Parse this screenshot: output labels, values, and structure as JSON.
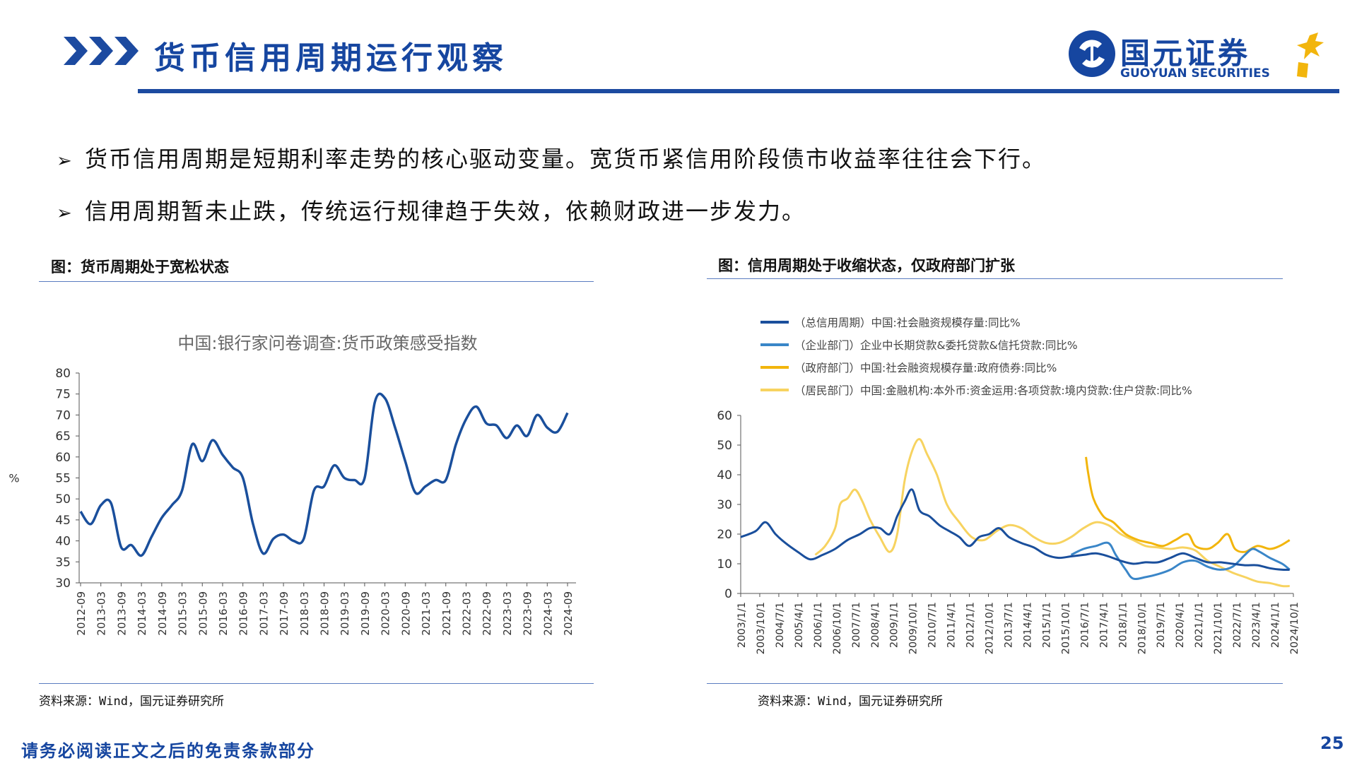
{
  "header": {
    "title": "货币信用周期运行观察",
    "logo_cn": "国元证券",
    "logo_en": "GUOYUAN SECURITIES"
  },
  "bullets": [
    "货币信用周期是短期利率走势的核心驱动变量。宽货币紧信用阶段债市收益率往往会下行。",
    "信用周期暂未止跌，传统运行规律趋于失效，依赖财政进一步发力。"
  ],
  "bullet_mark": "➢",
  "left_panel": {
    "figure_title": "图：货币周期处于宽松状态",
    "source": "资料来源：Wind，国元证券研究所"
  },
  "right_panel": {
    "figure_title": "图：信用周期处于收缩状态，仅政府部门扩张",
    "source": "资料来源：Wind，国元证券研究所"
  },
  "footer": {
    "disclaimer": "请务必阅读正文之后的免责条款部分",
    "page": "25"
  },
  "colors": {
    "brand_blue": "#1646a0",
    "series_dark": "#1a4f9c",
    "series_mid": "#3a86c8",
    "series_gold": "#f2b50c",
    "series_light_gold": "#f7d360"
  },
  "chart_data": [
    {
      "type": "line",
      "title": "中国:银行家问卷调查:货币政策感受指数",
      "ylabel": "%",
      "ylim": [
        30,
        80
      ],
      "yticks": [
        30,
        35,
        40,
        45,
        50,
        55,
        60,
        65,
        70,
        75,
        80
      ],
      "xticks": [
        "2012-09",
        "2013-03",
        "2013-09",
        "2014-03",
        "2014-09",
        "2015-03",
        "2015-09",
        "2016-03",
        "2016-09",
        "2017-03",
        "2017-09",
        "2018-03",
        "2018-09",
        "2019-03",
        "2019-09",
        "2020-03",
        "2020-09",
        "2021-03",
        "2021-09",
        "2022-03",
        "2022-09",
        "2023-03",
        "2023-09",
        "2024-03",
        "2024-09"
      ],
      "series": [
        {
          "color": "#1a4f9c",
          "values": [
            47,
            44,
            48.5,
            49,
            38.5,
            39,
            36.5,
            41,
            45.5,
            48.5,
            52,
            63,
            59,
            64,
            60.5,
            57.5,
            55,
            44,
            37,
            40.5,
            41.5,
            40,
            40.5,
            52,
            53,
            58,
            55,
            54.5,
            55,
            73,
            74,
            67,
            59,
            51.5,
            53,
            54.5,
            54.5,
            63,
            69,
            72,
            68,
            67.5,
            64.5,
            67.5,
            65,
            70,
            67,
            66,
            70.5
          ]
        }
      ]
    },
    {
      "type": "line",
      "ylim": [
        0,
        60
      ],
      "yticks": [
        0,
        10,
        20,
        30,
        40,
        50,
        60
      ],
      "xticks": [
        "2003/1/1",
        "2003/10/1",
        "2004/7/1",
        "2005/4/1",
        "2006/1/1",
        "2006/10/1",
        "2007/7/1",
        "2008/4/1",
        "2009/1/1",
        "2009/10/1",
        "2010/7/1",
        "2011/4/1",
        "2012/1/1",
        "2012/10/1",
        "2013/7/1",
        "2014/4/1",
        "2015/1/1",
        "2015/10/1",
        "2016/7/1",
        "2017/4/1",
        "2018/1/1",
        "2018/10/1",
        "2019/7/1",
        "2020/4/1",
        "2021/1/1",
        "2021/10/1",
        "2022/7/1",
        "2023/4/1",
        "2024/1/1",
        "2024/10/1"
      ],
      "x_range": [
        2003.0,
        2025.25
      ],
      "legend_position": "top-left",
      "series": [
        {
          "name": "（总信用周期）中国:社会融资规模存量:同比%",
          "color": "#1a4f9c",
          "points": [
            [
              2003.0,
              19
            ],
            [
              2003.6,
              21
            ],
            [
              2004.0,
              24
            ],
            [
              2004.4,
              20
            ],
            [
              2004.8,
              17
            ],
            [
              2005.3,
              14
            ],
            [
              2005.8,
              11.5
            ],
            [
              2006.3,
              13
            ],
            [
              2006.8,
              15
            ],
            [
              2007.3,
              18
            ],
            [
              2007.8,
              20
            ],
            [
              2008.2,
              22
            ],
            [
              2008.6,
              22
            ],
            [
              2009.0,
              20
            ],
            [
              2009.3,
              26
            ],
            [
              2009.6,
              31
            ],
            [
              2009.9,
              35
            ],
            [
              2010.2,
              28
            ],
            [
              2010.6,
              26
            ],
            [
              2011.0,
              23
            ],
            [
              2011.4,
              21
            ],
            [
              2011.8,
              19
            ],
            [
              2012.2,
              16
            ],
            [
              2012.6,
              19
            ],
            [
              2013.0,
              20
            ],
            [
              2013.4,
              22
            ],
            [
              2013.8,
              19
            ],
            [
              2014.3,
              17
            ],
            [
              2014.8,
              15.5
            ],
            [
              2015.3,
              13
            ],
            [
              2015.8,
              12
            ],
            [
              2016.3,
              12.5
            ],
            [
              2016.8,
              13
            ],
            [
              2017.3,
              13.5
            ],
            [
              2017.8,
              12.5
            ],
            [
              2018.3,
              11
            ],
            [
              2018.8,
              10
            ],
            [
              2019.3,
              10.5
            ],
            [
              2019.8,
              10.5
            ],
            [
              2020.3,
              12
            ],
            [
              2020.8,
              13.5
            ],
            [
              2021.3,
              12
            ],
            [
              2021.8,
              10.5
            ],
            [
              2022.3,
              10.5
            ],
            [
              2022.8,
              10
            ],
            [
              2023.3,
              9.5
            ],
            [
              2023.8,
              9.5
            ],
            [
              2024.3,
              8.5
            ],
            [
              2024.8,
              8
            ],
            [
              2025.1,
              8
            ]
          ]
        },
        {
          "name": "（企业部门）企业中长期贷款&委托贷款&信托贷款:同比%",
          "color": "#3a86c8",
          "points": [
            [
              2016.3,
              13
            ],
            [
              2016.8,
              15
            ],
            [
              2017.3,
              16
            ],
            [
              2017.8,
              17
            ],
            [
              2018.1,
              13
            ],
            [
              2018.5,
              8
            ],
            [
              2018.8,
              5
            ],
            [
              2019.3,
              5.5
            ],
            [
              2019.8,
              6.5
            ],
            [
              2020.3,
              8
            ],
            [
              2020.8,
              10.5
            ],
            [
              2021.3,
              11
            ],
            [
              2021.8,
              9
            ],
            [
              2022.3,
              8
            ],
            [
              2022.8,
              9
            ],
            [
              2023.3,
              13
            ],
            [
              2023.6,
              15
            ],
            [
              2023.9,
              14
            ],
            [
              2024.3,
              12
            ],
            [
              2024.8,
              10
            ],
            [
              2025.1,
              8
            ]
          ]
        },
        {
          "name": "（政府部门）中国:社会融资规模存量:政府债券:同比%",
          "color": "#f2b50c",
          "points": [
            [
              2016.9,
              46
            ],
            [
              2017.0,
              40
            ],
            [
              2017.2,
              32
            ],
            [
              2017.6,
              26
            ],
            [
              2018.0,
              24
            ],
            [
              2018.5,
              20
            ],
            [
              2019.0,
              18
            ],
            [
              2019.5,
              17
            ],
            [
              2020.0,
              16
            ],
            [
              2020.5,
              18
            ],
            [
              2021.0,
              20
            ],
            [
              2021.3,
              16
            ],
            [
              2021.8,
              15
            ],
            [
              2022.2,
              17
            ],
            [
              2022.6,
              20
            ],
            [
              2022.9,
              15
            ],
            [
              2023.3,
              14
            ],
            [
              2023.8,
              16
            ],
            [
              2024.3,
              15
            ],
            [
              2024.7,
              16
            ],
            [
              2025.1,
              18
            ]
          ]
        },
        {
          "name": "（居民部门）中国:金融机构:本外币:资金运用:各项贷款:境内贷款:住户贷款:同比%",
          "color": "#f7d360",
          "points": [
            [
              2006.0,
              13
            ],
            [
              2006.4,
              16
            ],
            [
              2006.8,
              22
            ],
            [
              2007.0,
              30
            ],
            [
              2007.3,
              32
            ],
            [
              2007.6,
              35
            ],
            [
              2007.9,
              31
            ],
            [
              2008.2,
              25
            ],
            [
              2008.6,
              19
            ],
            [
              2009.0,
              14
            ],
            [
              2009.3,
              20
            ],
            [
              2009.6,
              38
            ],
            [
              2009.9,
              48
            ],
            [
              2010.2,
              52
            ],
            [
              2010.5,
              47
            ],
            [
              2010.9,
              40
            ],
            [
              2011.3,
              30
            ],
            [
              2011.8,
              24
            ],
            [
              2012.3,
              19
            ],
            [
              2012.8,
              18
            ],
            [
              2013.3,
              21
            ],
            [
              2013.8,
              23
            ],
            [
              2014.3,
              22
            ],
            [
              2014.8,
              19
            ],
            [
              2015.3,
              17
            ],
            [
              2015.8,
              17
            ],
            [
              2016.3,
              19
            ],
            [
              2016.8,
              22
            ],
            [
              2017.3,
              24
            ],
            [
              2017.8,
              23
            ],
            [
              2018.3,
              20
            ],
            [
              2018.8,
              18
            ],
            [
              2019.3,
              16
            ],
            [
              2019.8,
              15.5
            ],
            [
              2020.3,
              15
            ],
            [
              2020.8,
              15.5
            ],
            [
              2021.3,
              14.5
            ],
            [
              2021.8,
              11
            ],
            [
              2022.3,
              9
            ],
            [
              2022.8,
              7
            ],
            [
              2023.3,
              5.5
            ],
            [
              2023.8,
              4
            ],
            [
              2024.3,
              3.5
            ],
            [
              2024.8,
              2.5
            ],
            [
              2025.1,
              2.5
            ]
          ]
        }
      ]
    }
  ]
}
